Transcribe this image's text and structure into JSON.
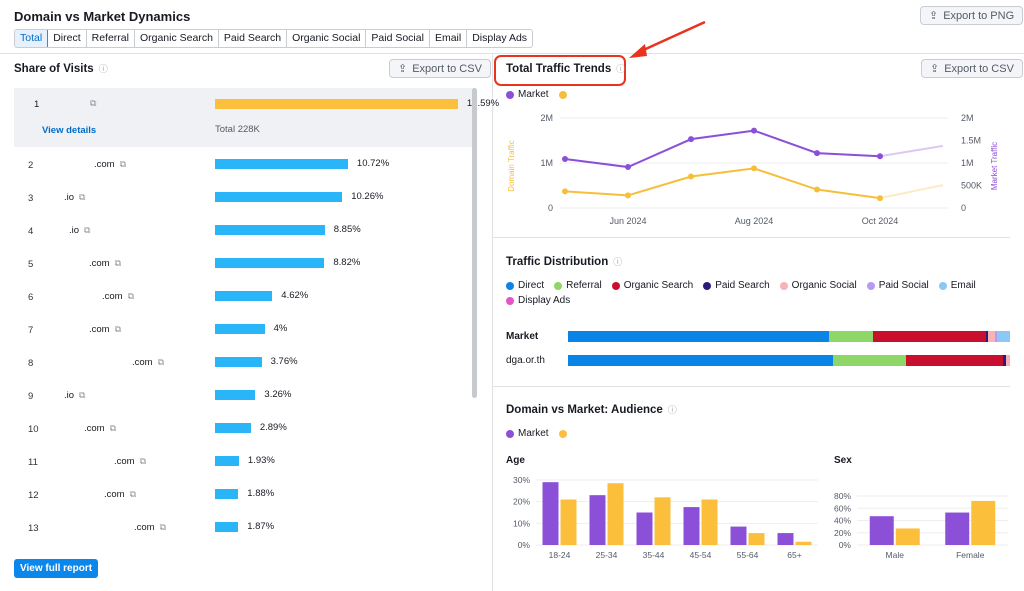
{
  "header": {
    "title": "Domain vs Market Dynamics",
    "export_png": "Export to PNG"
  },
  "tabs": [
    "Total",
    "Direct",
    "Referral",
    "Organic Search",
    "Paid Search",
    "Organic Social",
    "Paid Social",
    "Email",
    "Display Ads"
  ],
  "share": {
    "title": "Share of Visits",
    "export_csv": "Export to CSV",
    "first": {
      "num": "1",
      "pct": "19.59%",
      "value": 19.59,
      "view_details": "View details",
      "total": "Total  228K"
    },
    "rows": [
      {
        "num": "2",
        "dom": ".com",
        "pct": "10.72%",
        "value": 10.72
      },
      {
        "num": "3",
        "dom": ".io",
        "pct": "10.26%",
        "value": 10.26
      },
      {
        "num": "4",
        "dom": ".io",
        "pct": "8.85%",
        "value": 8.85
      },
      {
        "num": "5",
        "dom": ".com",
        "pct": "8.82%",
        "value": 8.82
      },
      {
        "num": "6",
        "dom": ".com",
        "pct": "4.62%",
        "value": 4.62
      },
      {
        "num": "7",
        "dom": ".com",
        "pct": "4%",
        "value": 4
      },
      {
        "num": "8",
        "dom": ".com",
        "pct": "3.76%",
        "value": 3.76
      },
      {
        "num": "9",
        "dom": ".io",
        "pct": "3.26%",
        "value": 3.26
      },
      {
        "num": "10",
        "dom": ".com",
        "pct": "2.89%",
        "value": 2.89
      },
      {
        "num": "11",
        "dom": ".com",
        "pct": "1.93%",
        "value": 1.93
      },
      {
        "num": "12",
        "dom": ".com",
        "pct": "1.88%",
        "value": 1.88
      },
      {
        "num": "13",
        "dom": ".com",
        "pct": "1.87%",
        "value": 1.87
      }
    ],
    "view_full": "View full report"
  },
  "trends": {
    "title": "Total Traffic Trends",
    "export_csv": "Export to CSV",
    "legend_market": "Market",
    "ylabel_left": "Domain Traffic",
    "ylabel_right": "Market Traffic",
    "left_ticks": [
      "2M",
      "1M",
      "0"
    ],
    "right_ticks": [
      "2M",
      "1.5M",
      "1M",
      "500K",
      "0"
    ],
    "x_ticks": [
      "Jun 2024",
      "Aug 2024",
      "Oct 2024"
    ]
  },
  "distribution": {
    "title": "Traffic Distribution",
    "legend": [
      {
        "label": "Direct",
        "color": "#0b84e8"
      },
      {
        "label": "Referral",
        "color": "#8ed665"
      },
      {
        "label": "Organic Search",
        "color": "#c8102e"
      },
      {
        "label": "Paid Search",
        "color": "#2e1a7c"
      },
      {
        "label": "Organic Social",
        "color": "#f7b3b8"
      },
      {
        "label": "Paid Social",
        "color": "#b89af5"
      },
      {
        "label": "Email",
        "color": "#8cc8f5"
      },
      {
        "label": "Display Ads",
        "color": "#e455c9"
      }
    ],
    "market_label": "Market",
    "domain_label": "dga.or.th",
    "market_shares": [
      59,
      10,
      25.5,
      0.6,
      1.5,
      0.4,
      3,
      0
    ],
    "domain_shares": [
      60,
      16.5,
      22,
      0.7,
      0.8,
      0,
      0,
      0
    ]
  },
  "audience": {
    "title": "Domain vs Market: Audience",
    "legend_market": "Market",
    "age": {
      "title": "Age",
      "ticks": [
        "30%",
        "20%",
        "10%",
        "0%"
      ]
    },
    "sex": {
      "title": "Sex",
      "ticks": [
        "80%",
        "60%",
        "40%",
        "20%",
        "0%"
      ]
    }
  },
  "chart_data": [
    {
      "type": "line",
      "x": [
        "May 2024",
        "Jun 2024",
        "Jul 2024",
        "Aug 2024",
        "Sep 2024",
        "Oct 2024",
        "Nov 2024"
      ],
      "series": [
        {
          "name": "Market",
          "color": "#8b4fd8",
          "values": [
            1090000,
            910000,
            1530000,
            1720000,
            1220000,
            1150000,
            1380000
          ]
        },
        {
          "color": "#f6bf3a",
          "values": [
            370000,
            280000,
            700000,
            880000,
            410000,
            220000,
            510000
          ]
        }
      ]
    },
    {
      "type": "bar",
      "title": "Age",
      "categories": [
        "18-24",
        "25-34",
        "35-44",
        "45-54",
        "55-64",
        "65+"
      ],
      "series": [
        {
          "name": "Market",
          "color": "#8b4fd8",
          "values": [
            29,
            23,
            15,
            17.5,
            8.5,
            5.5
          ]
        },
        {
          "color": "#fbbf3c",
          "values": [
            21,
            28.5,
            22,
            21,
            5.5,
            1.5
          ]
        }
      ],
      "ylim": [
        0,
        30
      ]
    },
    {
      "type": "bar",
      "title": "Sex",
      "categories": [
        "Male",
        "Female"
      ],
      "series": [
        {
          "name": "Market",
          "color": "#8b4fd8",
          "values": [
            47,
            53
          ]
        },
        {
          "color": "#fbbf3c",
          "values": [
            27,
            72
          ]
        }
      ],
      "ylim": [
        0,
        80
      ]
    }
  ]
}
